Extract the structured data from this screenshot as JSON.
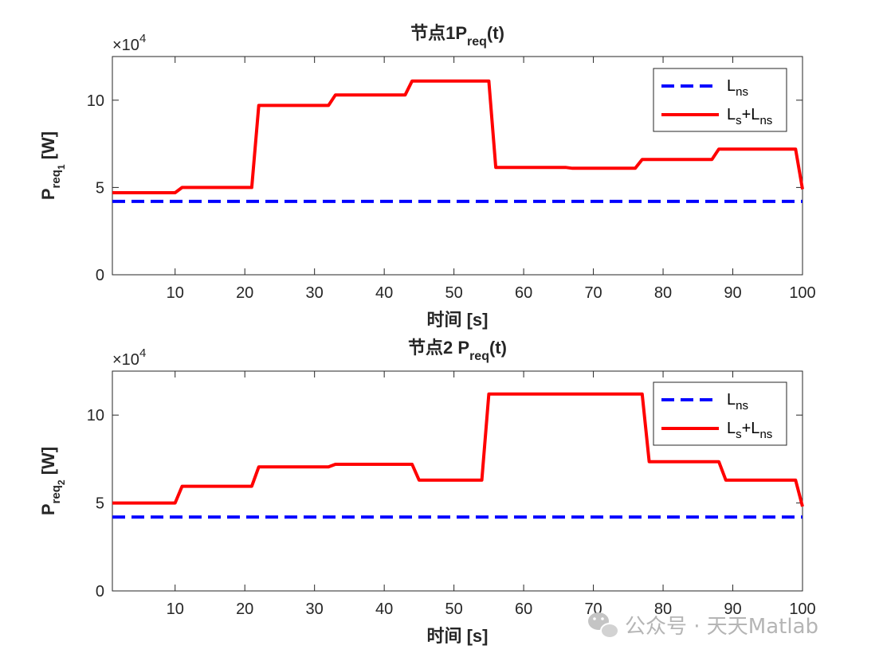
{
  "watermark": {
    "text": "公众号 · 天天Matlab",
    "icon": "wechat-icon",
    "color": "#b5b5b5"
  },
  "colors": {
    "lns": "#0000ff",
    "total": "#ff0000",
    "axis": "#262626"
  },
  "chart_data": [
    {
      "type": "line",
      "title_prefix": "节点1",
      "title_sym": "P",
      "title_sub": "req",
      "title_tail": "(t)",
      "ylabel_sym": "P",
      "ylabel_sub": "req",
      "ylabel_subsub": "1",
      "ylabel_unit": "[W]",
      "xlabel": "时间 [s]",
      "exponent_base": "×10",
      "exponent_power": "4",
      "xlim": [
        1,
        100
      ],
      "ylim": [
        0,
        12.5
      ],
      "xticks": [
        10,
        20,
        30,
        40,
        50,
        60,
        70,
        80,
        90,
        100
      ],
      "yticks": [
        0,
        5,
        10
      ],
      "legend_position": "top-right",
      "series": [
        {
          "name": "Lns",
          "label_main": "L",
          "label_sub": "ns",
          "style": "dashed",
          "color": "#0000ff",
          "x": [
            1,
            100
          ],
          "y": [
            4.2,
            4.2
          ]
        },
        {
          "name": "Ls+Lns",
          "label_main": "L",
          "label_sub": "s",
          "label_plus": "+L",
          "label_sub2": "ns",
          "style": "solid",
          "color": "#ff0000",
          "x": [
            1,
            10,
            11,
            21,
            22,
            32,
            33,
            43,
            44,
            55,
            56,
            66,
            67,
            76,
            77,
            87,
            88,
            99,
            100
          ],
          "y": [
            4.7,
            4.7,
            5.0,
            5.0,
            9.7,
            9.7,
            10.3,
            10.3,
            11.1,
            11.1,
            6.15,
            6.15,
            6.1,
            6.1,
            6.6,
            6.6,
            7.2,
            7.2,
            4.9
          ]
        }
      ]
    },
    {
      "type": "line",
      "title_prefix": "节点2 ",
      "title_sym": "P",
      "title_sub": "req",
      "title_tail": "(t)",
      "ylabel_sym": "P",
      "ylabel_sub": "req",
      "ylabel_subsub": "2",
      "ylabel_unit": "[W]",
      "xlabel": "时间 [s]",
      "exponent_base": "×10",
      "exponent_power": "4",
      "xlim": [
        1,
        100
      ],
      "ylim": [
        0,
        12.5
      ],
      "xticks": [
        10,
        20,
        30,
        40,
        50,
        60,
        70,
        80,
        90,
        100
      ],
      "yticks": [
        0,
        5,
        10
      ],
      "legend_position": "top-right",
      "series": [
        {
          "name": "Lns",
          "label_main": "L",
          "label_sub": "ns",
          "style": "dashed",
          "color": "#0000ff",
          "x": [
            1,
            100
          ],
          "y": [
            4.2,
            4.2
          ]
        },
        {
          "name": "Ls+Lns",
          "label_main": "L",
          "label_sub": "s",
          "label_plus": "+L",
          "label_sub2": "ns",
          "style": "solid",
          "color": "#ff0000",
          "x": [
            1,
            10,
            11,
            21,
            22,
            32,
            33,
            44,
            45,
            54,
            55,
            77,
            78,
            88,
            89,
            99,
            100
          ],
          "y": [
            5.0,
            5.0,
            5.95,
            5.95,
            7.05,
            7.05,
            7.2,
            7.2,
            6.3,
            6.3,
            11.2,
            11.2,
            7.35,
            7.35,
            6.3,
            6.3,
            4.8
          ]
        }
      ]
    }
  ]
}
